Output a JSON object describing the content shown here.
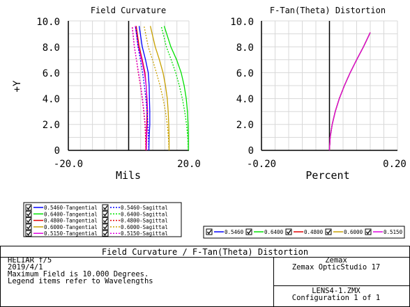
{
  "chart_data": [
    {
      "type": "line",
      "title": "Field Curvature",
      "xlabel": "Mils",
      "ylabel": "+Y",
      "xlim": [
        -20,
        20
      ],
      "ylim": [
        0,
        10
      ],
      "xticks": [
        "-20.0",
        "20.0"
      ],
      "yticks": [
        "0",
        "2.0",
        "4.0",
        "6.0",
        "8.0",
        "10.0"
      ],
      "grid": true,
      "series": [
        {
          "name": "0.5460-Tangential",
          "color": "#0000ff",
          "dashed": false,
          "x": [
            6.7,
            6.8,
            7.0,
            7.0,
            6.9,
            6.8,
            6.5,
            5.6,
            4.5,
            3.5
          ],
          "y": [
            0,
            1,
            2,
            3,
            4,
            5,
            6,
            7,
            8,
            9.6
          ]
        },
        {
          "name": "0.6400-Tangential",
          "color": "#00e000",
          "dashed": false,
          "x": [
            19.8,
            19.8,
            19.7,
            19.5,
            19.1,
            18.4,
            17.4,
            15.9,
            14.0,
            11.8
          ],
          "y": [
            0,
            1,
            2,
            3,
            4,
            5,
            6,
            7,
            8,
            9.6
          ]
        },
        {
          "name": "0.4800-Tangential",
          "color": "#e00000",
          "dashed": false,
          "x": [
            5.7,
            5.8,
            6.0,
            6.1,
            6.0,
            5.8,
            5.4,
            4.5,
            3.5,
            2.5
          ],
          "y": [
            0,
            1,
            2,
            3,
            4,
            5,
            6,
            7,
            8,
            9.6
          ]
        },
        {
          "name": "0.6000-Tangential",
          "color": "#c8a000",
          "dashed": false,
          "x": [
            13.4,
            13.4,
            13.3,
            13.1,
            12.8,
            12.2,
            11.4,
            10.2,
            8.8,
            7.2
          ],
          "y": [
            0,
            1,
            2,
            3,
            4,
            5,
            6,
            7,
            8,
            9.6
          ]
        },
        {
          "name": "0.5150-Tangential",
          "color": "#e000e0",
          "dashed": false,
          "x": [
            5.9,
            6.0,
            6.2,
            6.3,
            6.1,
            5.8,
            5.2,
            4.3,
            3.2,
            2.2
          ],
          "y": [
            0,
            1,
            2,
            3,
            4,
            5,
            6,
            7,
            8,
            9.6
          ]
        },
        {
          "name": "0.5460-Sagittal",
          "color": "#0000ff",
          "dashed": true,
          "x": [
            6.7,
            6.6,
            6.4,
            6.1,
            5.7,
            5.2,
            4.6,
            3.9,
            3.1,
            2.3
          ],
          "y": [
            0,
            1,
            2,
            3,
            4,
            5,
            6,
            7,
            8,
            9.6
          ]
        },
        {
          "name": "0.6400-Sagittal",
          "color": "#00e000",
          "dashed": true,
          "x": [
            19.8,
            19.6,
            19.2,
            18.6,
            17.8,
            16.8,
            15.6,
            14.1,
            12.5,
            10.8
          ],
          "y": [
            0,
            1,
            2,
            3,
            4,
            5,
            6,
            7,
            8,
            9.6
          ]
        },
        {
          "name": "0.4800-Sagittal",
          "color": "#e00000",
          "dashed": true,
          "x": [
            5.7,
            5.6,
            5.4,
            5.0,
            4.5,
            3.9,
            3.2,
            2.6,
            1.9,
            1.2
          ],
          "y": [
            0,
            1,
            2,
            3,
            4,
            5,
            6,
            7,
            8,
            9.6
          ]
        },
        {
          "name": "0.6000-Sagittal",
          "color": "#c8a000",
          "dashed": true,
          "x": [
            13.4,
            13.2,
            12.8,
            12.2,
            11.4,
            10.4,
            9.2,
            7.9,
            6.5,
            5.1
          ],
          "y": [
            0,
            1,
            2,
            3,
            4,
            5,
            6,
            7,
            8,
            9.6
          ]
        },
        {
          "name": "0.5150-Sagittal",
          "color": "#e000e0",
          "dashed": true,
          "x": [
            5.9,
            5.8,
            5.5,
            5.1,
            4.6,
            4.0,
            3.3,
            2.6,
            1.9,
            1.1
          ],
          "y": [
            0,
            1,
            2,
            3,
            4,
            5,
            6,
            7,
            8,
            9.6
          ]
        }
      ]
    },
    {
      "type": "line",
      "title": "F-Tan(Theta) Distortion",
      "xlabel": "Percent",
      "ylabel": "",
      "xlim": [
        -0.2,
        0.2
      ],
      "ylim": [
        0,
        10
      ],
      "xticks": [
        "-0.20",
        "0.20"
      ],
      "yticks": [
        "0",
        "2.0",
        "4.0",
        "6.0",
        "8.0",
        "10.0"
      ],
      "grid": true,
      "series": [
        {
          "name": "0.5460",
          "color": "#0000ff",
          "x": [
            0,
            0.002,
            0.008,
            0.017,
            0.029,
            0.044,
            0.061,
            0.08,
            0.1,
            0.12
          ],
          "y": [
            0,
            1,
            2,
            3,
            4,
            5,
            6,
            7,
            8,
            9.1
          ]
        },
        {
          "name": "0.6400",
          "color": "#00e000",
          "x": [
            0,
            0.002,
            0.008,
            0.017,
            0.029,
            0.044,
            0.061,
            0.08,
            0.1,
            0.12
          ],
          "y": [
            0,
            1,
            2,
            3,
            4,
            5,
            6,
            7,
            8,
            9.1
          ]
        },
        {
          "name": "0.4800",
          "color": "#e00000",
          "x": [
            0,
            0.002,
            0.008,
            0.017,
            0.029,
            0.044,
            0.061,
            0.08,
            0.1,
            0.12
          ],
          "y": [
            0,
            1,
            2,
            3,
            4,
            5,
            6,
            7,
            8,
            9.1
          ]
        },
        {
          "name": "0.6000",
          "color": "#c8a000",
          "x": [
            0,
            0.002,
            0.008,
            0.017,
            0.029,
            0.044,
            0.061,
            0.08,
            0.1,
            0.12
          ],
          "y": [
            0,
            1,
            2,
            3,
            4,
            5,
            6,
            7,
            8,
            9.1
          ]
        },
        {
          "name": "0.5150",
          "color": "#e000e0",
          "x": [
            0,
            0.002,
            0.008,
            0.017,
            0.029,
            0.044,
            0.061,
            0.08,
            0.1,
            0.12
          ],
          "y": [
            0,
            1,
            2,
            3,
            4,
            5,
            6,
            7,
            8,
            9.1
          ]
        }
      ]
    }
  ],
  "legend_left": [
    [
      "0.5460-Tangential",
      "0.5460-Sagittal"
    ],
    [
      "0.6400-Tangential",
      "0.6400-Sagittal"
    ],
    [
      "0.4800-Tangential",
      "0.4800-Sagittal"
    ],
    [
      "0.6000-Tangential",
      "0.6000-Sagittal"
    ],
    [
      "0.5150-Tangential",
      "0.5150-Sagittal"
    ]
  ],
  "legend_right": [
    "0.5460",
    "0.6400",
    "0.4800",
    "0.6000",
    "0.5150"
  ],
  "info": {
    "title": "Field Curvature / F-Tan(Theta) Distortion",
    "lens_name": "HELIAR  f/5",
    "date": "2019/4/1",
    "line1": "Maximum Field is 10.000 Degrees.",
    "line2": "Legend items refer to Wavelengths",
    "company": "Zemax",
    "product": "Zemax OpticStudio 17",
    "file": "LENS4-1.ZMX",
    "config": "Configuration 1 of 1"
  }
}
